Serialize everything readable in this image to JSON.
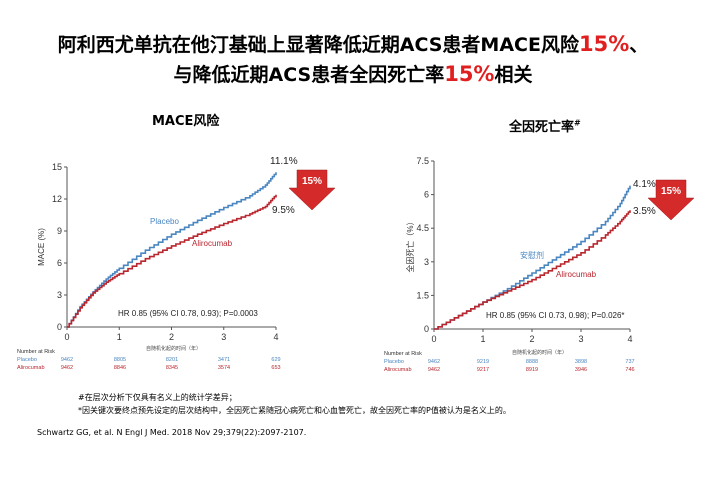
{
  "title": {
    "line1_prefix": "阿利西尤单抗在他汀基础上显著降低近期ACS患者MACE风险",
    "line1_highlight": "15%",
    "line1_suffix": "、",
    "line2_prefix": "与降低近期ACS患者全因死亡率",
    "line2_highlight": "15%",
    "line2_suffix": "相关"
  },
  "colors": {
    "placebo": "#4a86c0",
    "alirocumab": "#b8262e",
    "highlight": "#e02020",
    "arrow": "#d42a2a"
  },
  "chart_data": [
    {
      "type": "line",
      "title": "MACE风险",
      "xlabel": "自随机化起的时间（年）",
      "ylabel": "MACE (%)",
      "xlim": [
        0,
        4
      ],
      "ylim": [
        0,
        15
      ],
      "xticks": [
        "0",
        "1",
        "2",
        "3",
        "4"
      ],
      "yticks": [
        "0",
        "3",
        "6",
        "9",
        "12",
        "15"
      ],
      "grid": false,
      "series": [
        {
          "name": "Placebo",
          "x": [
            0,
            0.25,
            0.5,
            0.75,
            1,
            1.5,
            2,
            2.5,
            3,
            3.5,
            3.8,
            4
          ],
          "y": [
            0,
            1.9,
            3.3,
            4.5,
            5.5,
            7.2,
            8.7,
            10.0,
            11.2,
            12.3,
            13.3,
            14.5
          ]
        },
        {
          "name": "Alirocumab",
          "x": [
            0,
            0.25,
            0.5,
            0.75,
            1,
            1.5,
            2,
            2.5,
            3,
            3.5,
            3.8,
            4
          ],
          "y": [
            0,
            1.8,
            3.2,
            4.2,
            5.0,
            6.4,
            7.6,
            8.7,
            9.7,
            10.6,
            11.3,
            12.4
          ]
        }
      ],
      "end_labels": {
        "placebo": "11.1%",
        "alirocumab": "9.5%"
      },
      "arrow_label": "15%",
      "hr_text": "HR 0.85 (95% CI 0.78, 0.93); P=0.0003",
      "risk_table": {
        "header": "Number at Risk",
        "rows": [
          {
            "name": "Placebo",
            "values": [
              "9462",
              "8805",
              "8201",
              "3471",
              "629"
            ]
          },
          {
            "name": "Alirocumab",
            "values": [
              "9462",
              "8846",
              "8345",
              "3574",
              "653"
            ]
          }
        ]
      }
    },
    {
      "type": "line",
      "title": "全因死亡率",
      "title_sup": "#",
      "xlabel": "自随机化起的时间（年）",
      "ylabel": "全因死亡（%）",
      "xlim": [
        0,
        4
      ],
      "ylim": [
        0,
        7.5
      ],
      "xticks": [
        "0",
        "1",
        "2",
        "3",
        "4"
      ],
      "yticks": [
        "0",
        "1.5",
        "3",
        "4.5",
        "6",
        "7.5"
      ],
      "grid": false,
      "series": [
        {
          "name": "安慰剂",
          "x": [
            0,
            0.5,
            1,
            1.5,
            2,
            2.5,
            3,
            3.5,
            3.8,
            4
          ],
          "y": [
            0,
            0.6,
            1.2,
            1.8,
            2.5,
            3.2,
            3.9,
            4.8,
            5.6,
            6.4
          ]
        },
        {
          "name": "Alirocumab",
          "x": [
            0,
            0.5,
            1,
            1.5,
            2,
            2.5,
            3,
            3.5,
            3.8,
            4
          ],
          "y": [
            0,
            0.6,
            1.2,
            1.7,
            2.2,
            2.8,
            3.4,
            4.2,
            4.8,
            5.3
          ]
        }
      ],
      "end_labels": {
        "placebo": "4.1%",
        "alirocumab": "3.5%"
      },
      "arrow_label": "15%",
      "hr_text": "HR 0.85 (95% CI 0.73, 0.98); P=0.026*",
      "risk_table": {
        "header": "Number at Risk",
        "rows": [
          {
            "name": "Placebo",
            "values": [
              "9462",
              "9219",
              "8888",
              "3898",
              "737"
            ]
          },
          {
            "name": "Alirocumab",
            "values": [
              "9462",
              "9217",
              "8919",
              "3946",
              "746"
            ]
          }
        ]
      }
    }
  ],
  "notes": [
    "#在层次分析下仅具有名义上的统计学差异；",
    "*因关键次要终点预先设定的层次结构中，全因死亡紧随冠心病死亡和心血管死亡，故全因死亡率的P值被认为是名义上的。"
  ],
  "reference": "Schwartz GG, et al. N Engl J Med. 2018 Nov 29;379(22):2097-2107."
}
